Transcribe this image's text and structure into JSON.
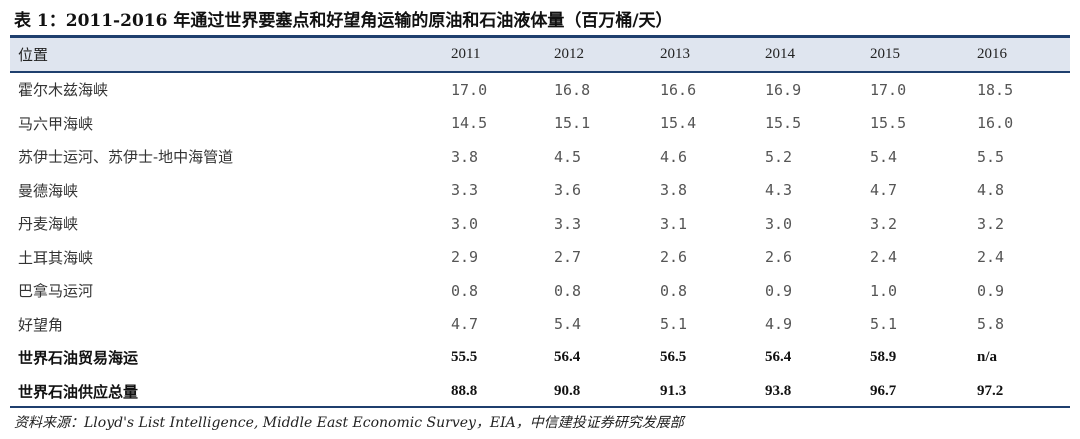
{
  "title": "表 1：2011-2016 年通过世界要塞点和好望角运输的原油和石油液体量（百万桶/天）",
  "table": {
    "headers": [
      "位置",
      "2011",
      "2012",
      "2013",
      "2014",
      "2015",
      "2016"
    ],
    "rows": [
      [
        "霍尔木兹海峡",
        "17.0",
        "16.8",
        "16.6",
        "16.9",
        "17.0",
        "18.5"
      ],
      [
        "马六甲海峡",
        "14.5",
        "15.1",
        "15.4",
        "15.5",
        "15.5",
        "16.0"
      ],
      [
        "苏伊士运河、苏伊士-地中海管道",
        "3.8",
        "4.5",
        "4.6",
        "5.2",
        "5.4",
        "5.5"
      ],
      [
        "曼德海峡",
        "3.3",
        "3.6",
        "3.8",
        "4.3",
        "4.7",
        "4.8"
      ],
      [
        "丹麦海峡",
        "3.0",
        "3.3",
        "3.1",
        "3.0",
        "3.2",
        "3.2"
      ],
      [
        "土耳其海峡",
        "2.9",
        "2.7",
        "2.6",
        "2.6",
        "2.4",
        "2.4"
      ],
      [
        "巴拿马运河",
        "0.8",
        "0.8",
        "0.8",
        "0.9",
        "1.0",
        "0.9"
      ],
      [
        "好望角",
        "4.7",
        "5.4",
        "5.1",
        "4.9",
        "5.1",
        "5.8"
      ],
      [
        "世界石油贸易海运",
        "55.5",
        "56.4",
        "56.5",
        "56.4",
        "58.9",
        "n/a"
      ],
      [
        "世界石油供应总量",
        "88.8",
        "90.8",
        "91.3",
        "93.8",
        "96.7",
        "97.2"
      ]
    ]
  },
  "source": "资料来源：Lloyd's List Intelligence, Middle East Economic Survey，EIA，中信建投证券研究发展部"
}
